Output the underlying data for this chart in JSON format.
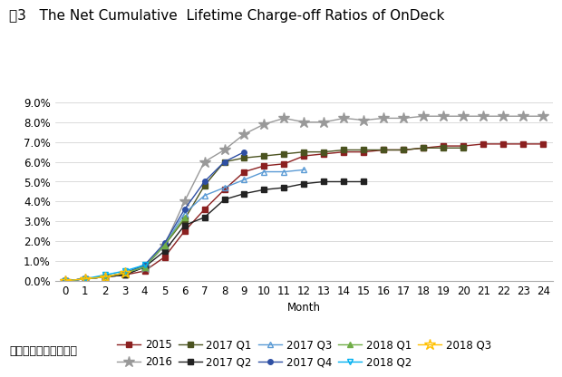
{
  "title": "图3   The Net Cumulative  Lifetime Charge-off Ratios of OnDeck",
  "xlabel": "Month",
  "ylabel": "",
  "xlim": [
    -0.5,
    24.5
  ],
  "ylim": [
    0,
    0.095
  ],
  "yticks": [
    0.0,
    0.01,
    0.02,
    0.03,
    0.04,
    0.05,
    0.06,
    0.07,
    0.08,
    0.09
  ],
  "xticks": [
    0,
    1,
    2,
    3,
    4,
    5,
    6,
    7,
    8,
    9,
    10,
    11,
    12,
    13,
    14,
    15,
    16,
    17,
    18,
    19,
    20,
    21,
    22,
    23,
    24
  ],
  "source_text": "资料来源：麻袋研究院",
  "series": [
    {
      "label": "2015",
      "color": "#8B2020",
      "marker": "s",
      "marker_filled": true,
      "x": [
        0,
        1,
        2,
        3,
        4,
        5,
        6,
        7,
        8,
        9,
        10,
        11,
        12,
        13,
        14,
        15,
        16,
        17,
        18,
        19,
        20,
        21,
        22,
        23,
        24
      ],
      "y": [
        0.0,
        0.001,
        0.002,
        0.003,
        0.005,
        0.012,
        0.025,
        0.036,
        0.046,
        0.055,
        0.058,
        0.059,
        0.063,
        0.064,
        0.065,
        0.065,
        0.066,
        0.066,
        0.067,
        0.068,
        0.068,
        0.069,
        0.069,
        0.069,
        0.069
      ]
    },
    {
      "label": "2016",
      "color": "#999999",
      "marker": "*",
      "marker_filled": true,
      "x": [
        0,
        1,
        2,
        3,
        4,
        5,
        6,
        7,
        8,
        9,
        10,
        11,
        12,
        13,
        14,
        15,
        16,
        17,
        18,
        19,
        20,
        21,
        22,
        23,
        24
      ],
      "y": [
        0.0,
        0.001,
        0.002,
        0.004,
        0.007,
        0.018,
        0.04,
        0.06,
        0.066,
        0.074,
        0.079,
        0.082,
        0.08,
        0.08,
        0.082,
        0.081,
        0.082,
        0.082,
        0.083,
        0.083,
        0.083,
        0.083,
        0.083,
        0.083,
        0.083
      ]
    },
    {
      "label": "2017 Q1",
      "color": "#4B5320",
      "marker": "s",
      "marker_filled": true,
      "x": [
        0,
        1,
        2,
        3,
        4,
        5,
        6,
        7,
        8,
        9,
        10,
        11,
        12,
        13,
        14,
        15,
        16,
        17,
        18,
        19,
        20,
        21,
        22,
        23,
        24
      ],
      "y": [
        0.0,
        0.001,
        0.002,
        0.003,
        0.007,
        0.018,
        0.031,
        0.048,
        0.06,
        0.062,
        0.063,
        0.064,
        0.065,
        0.065,
        0.066,
        0.066,
        0.066,
        0.066,
        0.067,
        0.067,
        0.067,
        null,
        null,
        null,
        null
      ]
    },
    {
      "label": "2017 Q2",
      "color": "#222222",
      "marker": "s",
      "marker_filled": true,
      "x": [
        0,
        1,
        2,
        3,
        4,
        5,
        6,
        7,
        8,
        9,
        10,
        11,
        12,
        13,
        14,
        15,
        16,
        17,
        18,
        19,
        20,
        21,
        22,
        23,
        24
      ],
      "y": [
        0.0,
        0.001,
        0.002,
        0.003,
        0.007,
        0.015,
        0.028,
        0.032,
        0.041,
        0.044,
        0.046,
        0.047,
        0.049,
        0.05,
        0.05,
        0.05,
        null,
        null,
        null,
        null,
        null,
        null,
        null,
        null,
        null
      ]
    },
    {
      "label": "2017 Q3",
      "color": "#5B9BD5",
      "marker": "^",
      "marker_filled": false,
      "x": [
        0,
        1,
        2,
        3,
        4,
        5,
        6,
        7,
        8,
        9,
        10,
        11,
        12,
        13,
        14,
        15,
        16,
        17,
        18,
        19,
        20,
        21,
        22,
        23,
        24
      ],
      "y": [
        0.0,
        0.001,
        0.002,
        0.004,
        0.007,
        0.018,
        0.034,
        0.043,
        0.047,
        0.051,
        0.055,
        0.055,
        0.056,
        null,
        null,
        null,
        null,
        null,
        null,
        null,
        null,
        null,
        null,
        null,
        null
      ]
    },
    {
      "label": "2017 Q4",
      "color": "#2E4FA3",
      "marker": "o",
      "marker_filled": true,
      "x": [
        0,
        1,
        2,
        3,
        4,
        5,
        6,
        7,
        8,
        9,
        10,
        11,
        12,
        13,
        14,
        15,
        16,
        17,
        18,
        19,
        20,
        21,
        22,
        23,
        24
      ],
      "y": [
        0.0,
        0.001,
        0.002,
        0.004,
        0.008,
        0.019,
        0.036,
        0.05,
        0.06,
        0.065,
        null,
        null,
        null,
        null,
        null,
        null,
        null,
        null,
        null,
        null,
        null,
        null,
        null,
        null,
        null
      ]
    },
    {
      "label": "2018 Q1",
      "color": "#70AD47",
      "marker": "^",
      "marker_filled": true,
      "x": [
        0,
        1,
        2,
        3,
        4,
        5,
        6,
        7,
        8,
        9,
        10,
        11,
        12,
        13,
        14,
        15,
        16,
        17,
        18,
        19,
        20,
        21,
        22,
        23,
        24
      ],
      "y": [
        0.0,
        0.001,
        0.002,
        0.004,
        0.007,
        0.018,
        0.032,
        null,
        null,
        null,
        null,
        null,
        null,
        null,
        null,
        null,
        null,
        null,
        null,
        null,
        null,
        null,
        null,
        null,
        null
      ]
    },
    {
      "label": "2018 Q2",
      "color": "#00B0F0",
      "marker": "v",
      "marker_filled": false,
      "x": [
        0,
        1,
        2,
        3,
        4,
        5,
        6,
        7,
        8,
        9,
        10,
        11,
        12,
        13,
        14,
        15,
        16,
        17,
        18,
        19,
        20,
        21,
        22,
        23,
        24
      ],
      "y": [
        0.0,
        0.001,
        0.003,
        0.005,
        0.008,
        null,
        null,
        null,
        null,
        null,
        null,
        null,
        null,
        null,
        null,
        null,
        null,
        null,
        null,
        null,
        null,
        null,
        null,
        null,
        null
      ]
    },
    {
      "label": "2018 Q3",
      "color": "#FFC000",
      "marker": "*",
      "marker_filled": false,
      "x": [
        0,
        1,
        2,
        3,
        4,
        5,
        6,
        7,
        8,
        9,
        10,
        11,
        12,
        13,
        14,
        15,
        16,
        17,
        18,
        19,
        20,
        21,
        22,
        23,
        24
      ],
      "y": [
        0.0,
        0.001,
        0.002,
        0.004,
        null,
        null,
        null,
        null,
        null,
        null,
        null,
        null,
        null,
        null,
        null,
        null,
        null,
        null,
        null,
        null,
        null,
        null,
        null,
        null,
        null
      ]
    }
  ],
  "background_color": "#ffffff",
  "title_fontsize": 11,
  "axis_fontsize": 8.5,
  "legend_fontsize": 8.5
}
